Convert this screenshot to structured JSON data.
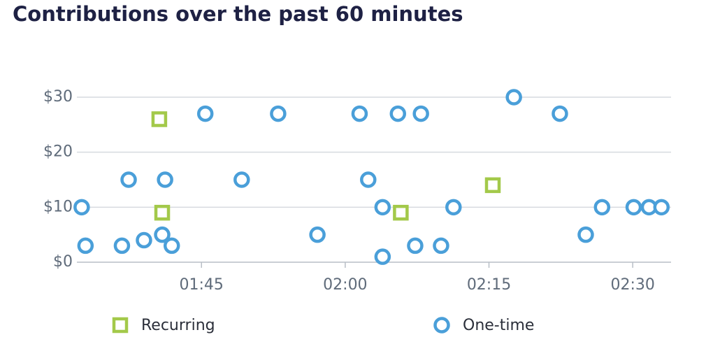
{
  "chart_data": {
    "type": "scatter",
    "title": "Contributions over the past 60 minutes",
    "xlim": [
      92,
      154
    ],
    "xticks": [
      {
        "value": 105,
        "label": "01:45"
      },
      {
        "value": 120,
        "label": "02:00"
      },
      {
        "value": 135,
        "label": "02:15"
      },
      {
        "value": 150,
        "label": "02:30"
      }
    ],
    "ylim": [
      0,
      30
    ],
    "yticks": [
      {
        "value": 0,
        "label": "$0"
      },
      {
        "value": 10,
        "label": "$10"
      },
      {
        "value": 20,
        "label": "$20"
      },
      {
        "value": 30,
        "label": "$30"
      }
    ],
    "grid": true,
    "series": [
      {
        "name": "Recurring",
        "color": "#a3c94a",
        "marker": "square",
        "x": [
          100.6,
          100.9,
          125.8,
          135.4
        ],
        "values": [
          26,
          9,
          9,
          14
        ]
      },
      {
        "name": "One-time",
        "color": "#4a9fd9",
        "marker": "circle",
        "x": [
          92.5,
          92.9,
          97.4,
          96.7,
          99.0,
          100.9,
          101.2,
          101.9,
          105.4,
          109.2,
          113.0,
          117.1,
          121.5,
          122.4,
          123.9,
          123.9,
          125.5,
          127.3,
          127.9,
          130.0,
          131.3,
          137.6,
          142.4,
          145.1,
          146.8,
          150.1,
          151.7,
          153.0
        ],
        "values": [
          10,
          3,
          15,
          3,
          4,
          5,
          15,
          3,
          27,
          15,
          27,
          5,
          27,
          15,
          10,
          1,
          27,
          3,
          27,
          3,
          10,
          30,
          27,
          5,
          10,
          10,
          10,
          10
        ]
      }
    ]
  }
}
